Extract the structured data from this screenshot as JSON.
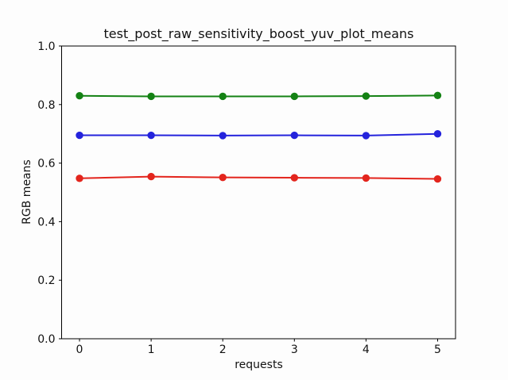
{
  "figure": {
    "background": "#fdfdfd",
    "axes_color": "#000000",
    "text_color": "#111111"
  },
  "chart_data": {
    "type": "line",
    "title": "test_post_raw_sensitivity_boost_yuv_plot_means",
    "xlabel": "requests",
    "ylabel": "RGB means",
    "x": [
      0,
      1,
      2,
      3,
      4,
      5
    ],
    "series": [
      {
        "name": "red",
        "color": "#e3251d",
        "marker": "o",
        "values": [
          0.548,
          0.554,
          0.551,
          0.55,
          0.549,
          0.546
        ]
      },
      {
        "name": "green",
        "color": "#148214",
        "marker": "o",
        "values": [
          0.83,
          0.828,
          0.828,
          0.828,
          0.829,
          0.831
        ]
      },
      {
        "name": "blue",
        "color": "#2423dc",
        "marker": "o",
        "values": [
          0.695,
          0.695,
          0.694,
          0.695,
          0.694,
          0.7
        ]
      }
    ],
    "xticks": [
      "0",
      "1",
      "2",
      "3",
      "4",
      "5"
    ],
    "yticks": [
      "0.0",
      "0.2",
      "0.4",
      "0.6",
      "0.8",
      "1.0"
    ],
    "xlim": [
      -0.25,
      5.25
    ],
    "ylim": [
      0.0,
      1.0
    ],
    "grid": false,
    "legend": false
  }
}
